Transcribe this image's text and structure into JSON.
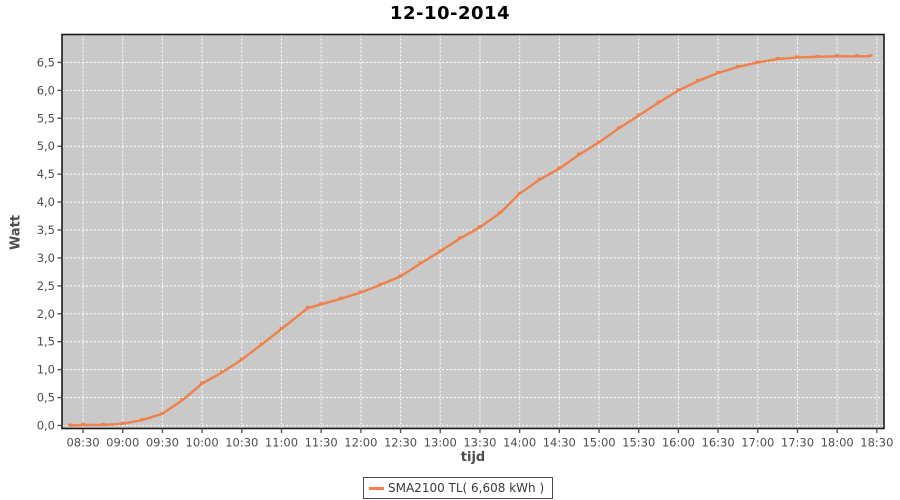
{
  "page": {
    "background": "#ffffff"
  },
  "chart_data": {
    "type": "line",
    "title": "12-10-2014",
    "xlabel": "tijd",
    "ylabel": "Watt",
    "grid": true,
    "legend_position": "bottom-center",
    "plot_bg_color": "#c9c9c9",
    "grid_color": "#ffffff",
    "plot_border_color": "#1a1a1a",
    "tick_color": "#555555",
    "tick_label_color": "#4d4d4d",
    "x_tick_labels": [
      "08:30",
      "09:00",
      "09:30",
      "10:00",
      "10:30",
      "11:00",
      "11:30",
      "12:00",
      "12:30",
      "13:00",
      "13:30",
      "14:00",
      "14:30",
      "15:00",
      "15:30",
      "16:00",
      "16:30",
      "17:00",
      "17:30",
      "18:00",
      "18:30"
    ],
    "x_tick_values": [
      8.5,
      9.0,
      9.5,
      10.0,
      10.5,
      11.0,
      11.5,
      12.0,
      12.5,
      13.0,
      13.5,
      14.0,
      14.5,
      15.0,
      15.5,
      16.0,
      16.5,
      17.0,
      17.5,
      18.0,
      18.5
    ],
    "y_tick_labels": [
      "0,0",
      "0,5",
      "1,0",
      "1,5",
      "2,0",
      "2,5",
      "3,0",
      "3,5",
      "4,0",
      "4,5",
      "5,0",
      "5,5",
      "6,0",
      "6,5"
    ],
    "y_tick_values": [
      0,
      0.5,
      1.0,
      1.5,
      2.0,
      2.5,
      3.0,
      3.5,
      4.0,
      4.5,
      5.0,
      5.5,
      6.0,
      6.5
    ],
    "xlim": [
      8.235,
      18.59
    ],
    "ylim": [
      -0.054,
      7.0
    ],
    "legend": {
      "label": "SMA2100 TL( 6,608 kWh )",
      "swatch_color": "#f0814a"
    },
    "series": [
      {
        "name": "SMA2100 TL( 6,608 kWh )",
        "color": "#f0814a",
        "points": [
          [
            8.33,
            0.0
          ],
          [
            8.5,
            0.01
          ],
          [
            8.75,
            0.01
          ],
          [
            9.0,
            0.03
          ],
          [
            9.25,
            0.1
          ],
          [
            9.5,
            0.21
          ],
          [
            9.75,
            0.45
          ],
          [
            10.0,
            0.75
          ],
          [
            10.25,
            0.95
          ],
          [
            10.5,
            1.18
          ],
          [
            10.75,
            1.45
          ],
          [
            11.0,
            1.73
          ],
          [
            11.33,
            2.1
          ],
          [
            11.5,
            2.17
          ],
          [
            11.75,
            2.27
          ],
          [
            12.0,
            2.38
          ],
          [
            12.25,
            2.52
          ],
          [
            12.5,
            2.67
          ],
          [
            12.75,
            2.9
          ],
          [
            13.0,
            3.12
          ],
          [
            13.25,
            3.35
          ],
          [
            13.5,
            3.55
          ],
          [
            13.75,
            3.8
          ],
          [
            14.0,
            4.15
          ],
          [
            14.25,
            4.4
          ],
          [
            14.5,
            4.6
          ],
          [
            14.75,
            4.85
          ],
          [
            15.0,
            5.07
          ],
          [
            15.25,
            5.32
          ],
          [
            15.5,
            5.55
          ],
          [
            15.75,
            5.78
          ],
          [
            16.0,
            6.0
          ],
          [
            16.25,
            6.17
          ],
          [
            16.5,
            6.31
          ],
          [
            16.75,
            6.42
          ],
          [
            17.0,
            6.5
          ],
          [
            17.25,
            6.56
          ],
          [
            17.5,
            6.59
          ],
          [
            17.75,
            6.6
          ],
          [
            18.0,
            6.61
          ],
          [
            18.25,
            6.61
          ],
          [
            18.42,
            6.61
          ]
        ]
      }
    ]
  }
}
